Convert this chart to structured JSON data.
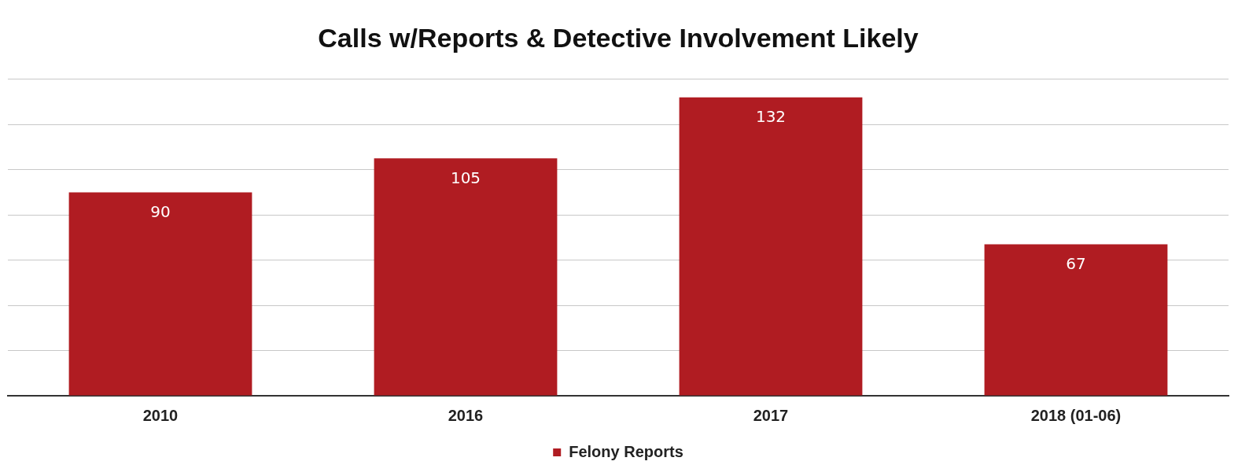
{
  "chart_data": {
    "type": "bar",
    "title": "Calls w/Reports & Detective Involvement Likely",
    "categories": [
      "2010",
      "2016",
      "2017",
      "2018 (01-06)"
    ],
    "series": [
      {
        "name": "Felony Reports",
        "color": "#b01c22",
        "values": [
          90,
          105,
          132,
          67
        ]
      }
    ],
    "ylim": [
      0,
      140
    ],
    "yticks": [
      {
        "value": 0,
        "label": null
      },
      {
        "value": 20,
        "label": null
      },
      {
        "value": 40,
        "label": null
      },
      {
        "value": 60,
        "label": null
      },
      {
        "value": 80,
        "label": null
      },
      {
        "value": 100,
        "label": null
      },
      {
        "value": 120,
        "label": null
      },
      {
        "value": 140,
        "label": null
      }
    ],
    "tick_labels": "x",
    "grid": "y",
    "legend": "bottom",
    "data_labels": true
  }
}
